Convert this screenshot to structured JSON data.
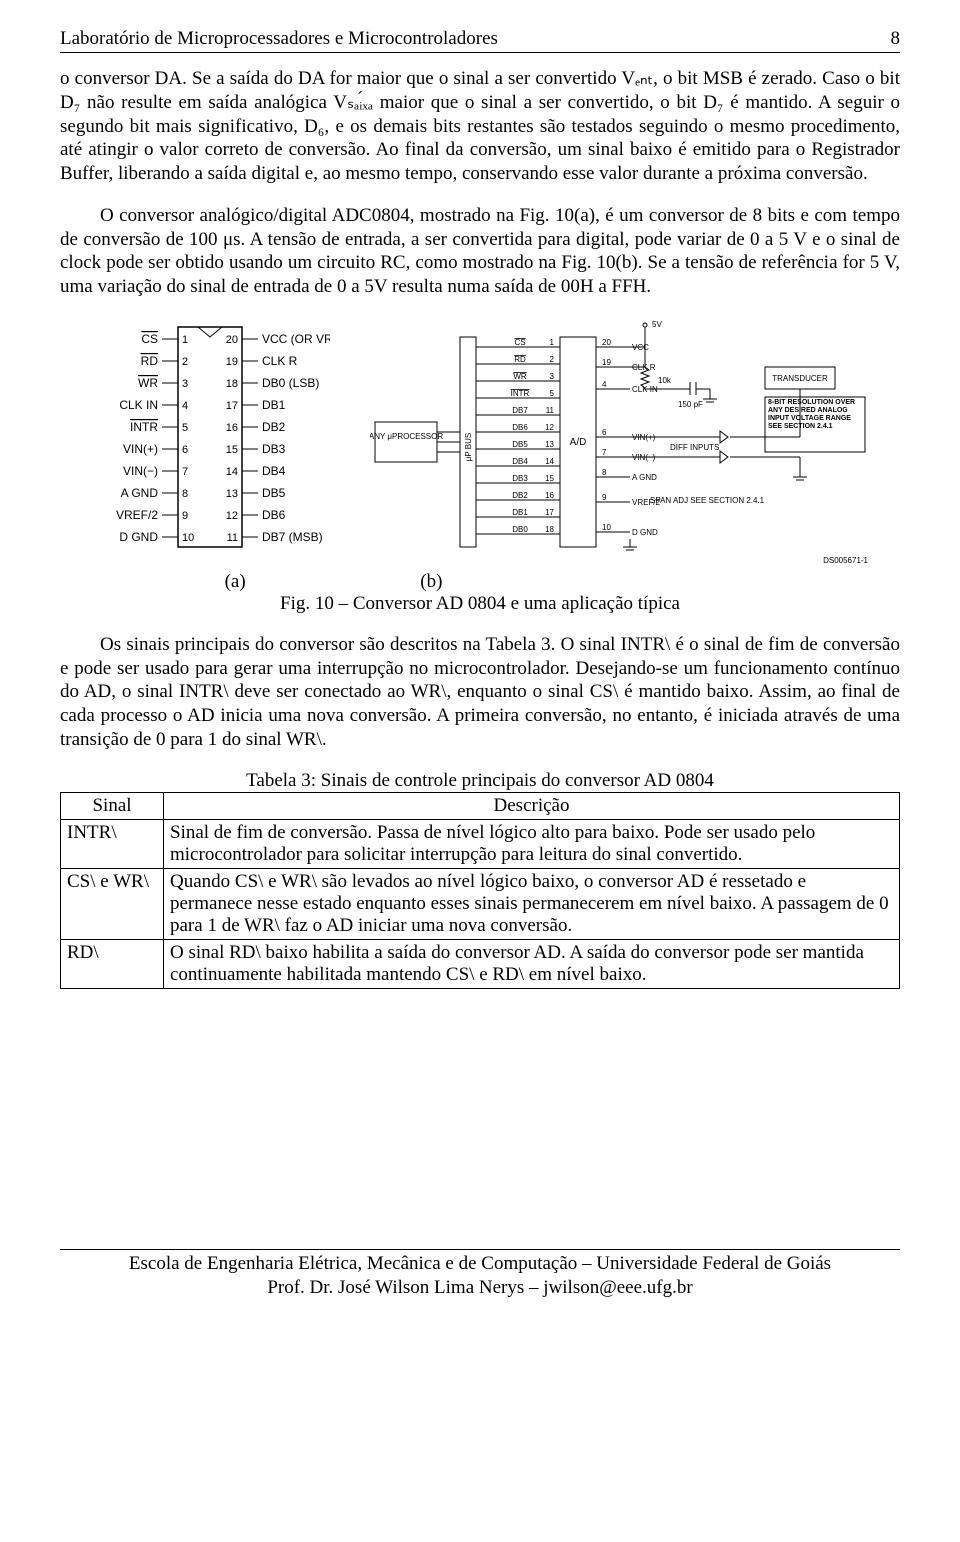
{
  "header": {
    "title": "Laboratório de Microprocessadores e Microcontroladores",
    "pagenum": "8"
  },
  "paragraphs": {
    "p1": "o conversor DA. Se a saída do DA for maior que o sinal a ser convertido Vₑₙₜ, o bit MSB é zerado. Caso o bit D₇ não resulte em saída analógica Vₛₐᵢ́ₓₐ maior que o sinal a ser convertido, o bit D₇ é mantido. A seguir o segundo bit mais significativo, D₆, e os demais bits restantes são testados seguindo o mesmo procedimento, até atingir o valor correto de conversão. Ao final da conversão, um sinal baixo é emitido para o Registrador Buffer, liberando a saída digital e, ao mesmo tempo, conservando esse valor durante a próxima conversão.",
    "p2": "O conversor analógico/digital ADC0804, mostrado na Fig. 10(a), é um conversor de 8 bits e com tempo de conversão de 100 μs. A tensão de entrada, a ser convertida para digital, pode variar de 0 a 5 V e o sinal de clock pode ser obtido usando um circuito RC, como mostrado na Fig. 10(b). Se a tensão de referência for 5 V, uma variação do sinal de entrada de 0 a 5V resulta numa saída de 00H a FFH.",
    "p3": "Os sinais principais do conversor são descritos na Tabela 3. O sinal INTR\\ é o sinal de fim de conversão e pode ser usado para gerar uma interrupção no microcontrolador. Desejando-se um funcionamento contínuo do AD, o sinal INTR\\ deve ser conectado ao WR\\, enquanto o sinal CS\\ é mantido baixo. Assim, ao final de cada processo o AD inicia uma nova conversão. A primeira conversão, no entanto, é iniciada através de uma transição de 0 para 1 do sinal WR\\."
  },
  "fig": {
    "label_a": "(a)",
    "label_b": "(b)",
    "caption": "Fig. 10 – Conversor AD 0804 e uma aplicação típica",
    "a": {
      "left_pins": [
        {
          "n": "1",
          "l": "CS",
          "ov": true
        },
        {
          "n": "2",
          "l": "RD",
          "ov": true
        },
        {
          "n": "3",
          "l": "WR",
          "ov": true
        },
        {
          "n": "4",
          "l": "CLK IN"
        },
        {
          "n": "5",
          "l": "INTR",
          "ov": true
        },
        {
          "n": "6",
          "l": "VIN(+)"
        },
        {
          "n": "7",
          "l": "VIN(−)"
        },
        {
          "n": "8",
          "l": "A GND"
        },
        {
          "n": "9",
          "l": "VREF/2"
        },
        {
          "n": "10",
          "l": "D GND"
        }
      ],
      "right_pins": [
        {
          "n": "20",
          "l": "VCC (OR VREF)"
        },
        {
          "n": "19",
          "l": "CLK R"
        },
        {
          "n": "18",
          "l": "DB0 (LSB)"
        },
        {
          "n": "17",
          "l": "DB1"
        },
        {
          "n": "16",
          "l": "DB2"
        },
        {
          "n": "15",
          "l": "DB3"
        },
        {
          "n": "14",
          "l": "DB4"
        },
        {
          "n": "13",
          "l": "DB5"
        },
        {
          "n": "12",
          "l": "DB6"
        },
        {
          "n": "11",
          "l": "DB7 (MSB)"
        }
      ]
    },
    "b": {
      "proc": "ANY μPROCESSOR",
      "bus": "μP BUS",
      "ad": "A/D",
      "lines": [
        "CS",
        "RD",
        "WR",
        "INTR",
        "DB7",
        "DB6",
        "DB5",
        "DB4",
        "DB3",
        "DB2",
        "DB1",
        "DB0"
      ],
      "nums": [
        "1",
        "2",
        "3",
        "5",
        "11",
        "12",
        "13",
        "14",
        "15",
        "16",
        "17",
        "18"
      ],
      "right_pairs": [
        {
          "n": "20",
          "l": "VCC"
        },
        {
          "n": "19",
          "l": "CLK R"
        },
        {
          "n": "4",
          "l": "CLK IN"
        },
        {
          "n": "6",
          "l": "VIN(+)"
        },
        {
          "n": "7",
          "l": "VIN(−)"
        },
        {
          "n": "8",
          "l": "A GND"
        },
        {
          "n": "9",
          "l": "VREF/2"
        },
        {
          "n": "10",
          "l": "D GND"
        }
      ],
      "vcc": "5V",
      "r": "10k",
      "c": "150 pF",
      "diff": "DIFF INPUTS",
      "span": "SPAN ADJ SEE SECTION 2.4.1",
      "transducer": "TRANSDUCER",
      "note": "8-BIT RESOLUTION OVER ANY DESIRED ANALOG INPUT VOLTAGE RANGE SEE SECTION 2.4.1",
      "ds": "DS005671-1"
    }
  },
  "table": {
    "caption": "Tabela 3: Sinais de controle principais do conversor AD 0804",
    "h1": "Sinal",
    "h2": "Descrição",
    "rows": [
      {
        "s": "INTR\\",
        "d": "Sinal de fim de conversão. Passa de nível lógico alto para baixo. Pode ser usado pelo microcontrolador para solicitar interrupção para leitura do sinal convertido."
      },
      {
        "s": "CS\\ e WR\\",
        "d": "Quando CS\\ e WR\\ são levados ao nível lógico baixo, o conversor AD é ressetado e permanece nesse estado enquanto esses sinais permanecerem em nível baixo. A passagem de 0 para 1 de WR\\ faz o AD iniciar uma nova conversão."
      },
      {
        "s": "RD\\",
        "d": "O sinal RD\\ baixo habilita a saída do conversor AD. A saída do conversor pode ser mantida continuamente habilitada mantendo CS\\ e RD\\ em nível baixo."
      }
    ]
  },
  "footer": {
    "l1": "Escola de Engenharia Elétrica, Mecânica e de Computação – Universidade Federal de Goiás",
    "l2": "Prof. Dr. José Wilson Lima Nerys – jwilson@eee.ufg.br"
  }
}
